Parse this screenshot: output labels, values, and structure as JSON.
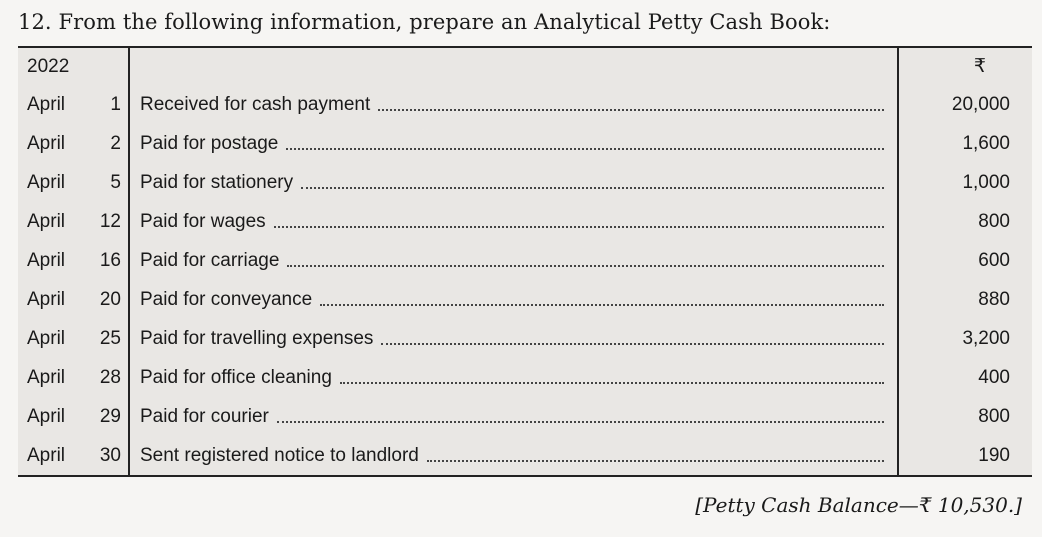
{
  "question": "12. From the following information, prepare an Analytical Petty Cash Book:",
  "table": {
    "year": "2022",
    "currency_symbol": "₹",
    "rows": [
      {
        "month": "April",
        "day": "1",
        "description": "Received for cash payment",
        "amount": "20,000"
      },
      {
        "month": "April",
        "day": "2",
        "description": "Paid for postage",
        "amount": "1,600"
      },
      {
        "month": "April",
        "day": "5",
        "description": "Paid for stationery",
        "amount": "1,000"
      },
      {
        "month": "April",
        "day": "12",
        "description": "Paid for wages",
        "amount": "800"
      },
      {
        "month": "April",
        "day": "16",
        "description": "Paid for carriage",
        "amount": "600"
      },
      {
        "month": "April",
        "day": "20",
        "description": "Paid for conveyance",
        "amount": "880"
      },
      {
        "month": "April",
        "day": "25",
        "description": "Paid for travelling expenses",
        "amount": "3,200"
      },
      {
        "month": "April",
        "day": "28",
        "description": "Paid for office cleaning",
        "amount": "400"
      },
      {
        "month": "April",
        "day": "29",
        "description": "Paid for courier",
        "amount": "800"
      },
      {
        "month": "April",
        "day": "30",
        "description": "Sent registered notice to landlord",
        "amount": "190"
      }
    ]
  },
  "answer": "[Petty Cash Balance—₹ 10,530.]"
}
